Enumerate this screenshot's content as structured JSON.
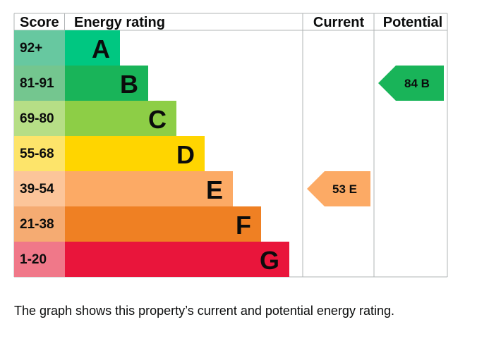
{
  "chart_data": {
    "type": "bar",
    "columns": {
      "score": "Score",
      "rating": "Energy rating",
      "current": "Current",
      "potential": "Potential"
    },
    "bands": [
      {
        "range": "92+",
        "letter": "A",
        "band_color": "#00c781",
        "score_color": "#67c8a0"
      },
      {
        "range": "81-91",
        "letter": "B",
        "band_color": "#19b459",
        "score_color": "#74c68f"
      },
      {
        "range": "69-80",
        "letter": "C",
        "band_color": "#8dce46",
        "score_color": "#b6de86"
      },
      {
        "range": "55-68",
        "letter": "D",
        "band_color": "#ffd500",
        "score_color": "#fde46a"
      },
      {
        "range": "39-54",
        "letter": "E",
        "band_color": "#fcaa65",
        "score_color": "#fcc59a"
      },
      {
        "range": "21-38",
        "letter": "F",
        "band_color": "#ef8023",
        "score_color": "#f5ab72"
      },
      {
        "range": "1-20",
        "letter": "G",
        "band_color": "#e9153b",
        "score_color": "#f07889"
      }
    ],
    "current": {
      "value": 53,
      "letter": "E",
      "color": "#fcaa65"
    },
    "potential": {
      "value": 84,
      "letter": "B",
      "color": "#19b459"
    }
  },
  "caption": "The graph shows this property’s current and potential energy rating."
}
